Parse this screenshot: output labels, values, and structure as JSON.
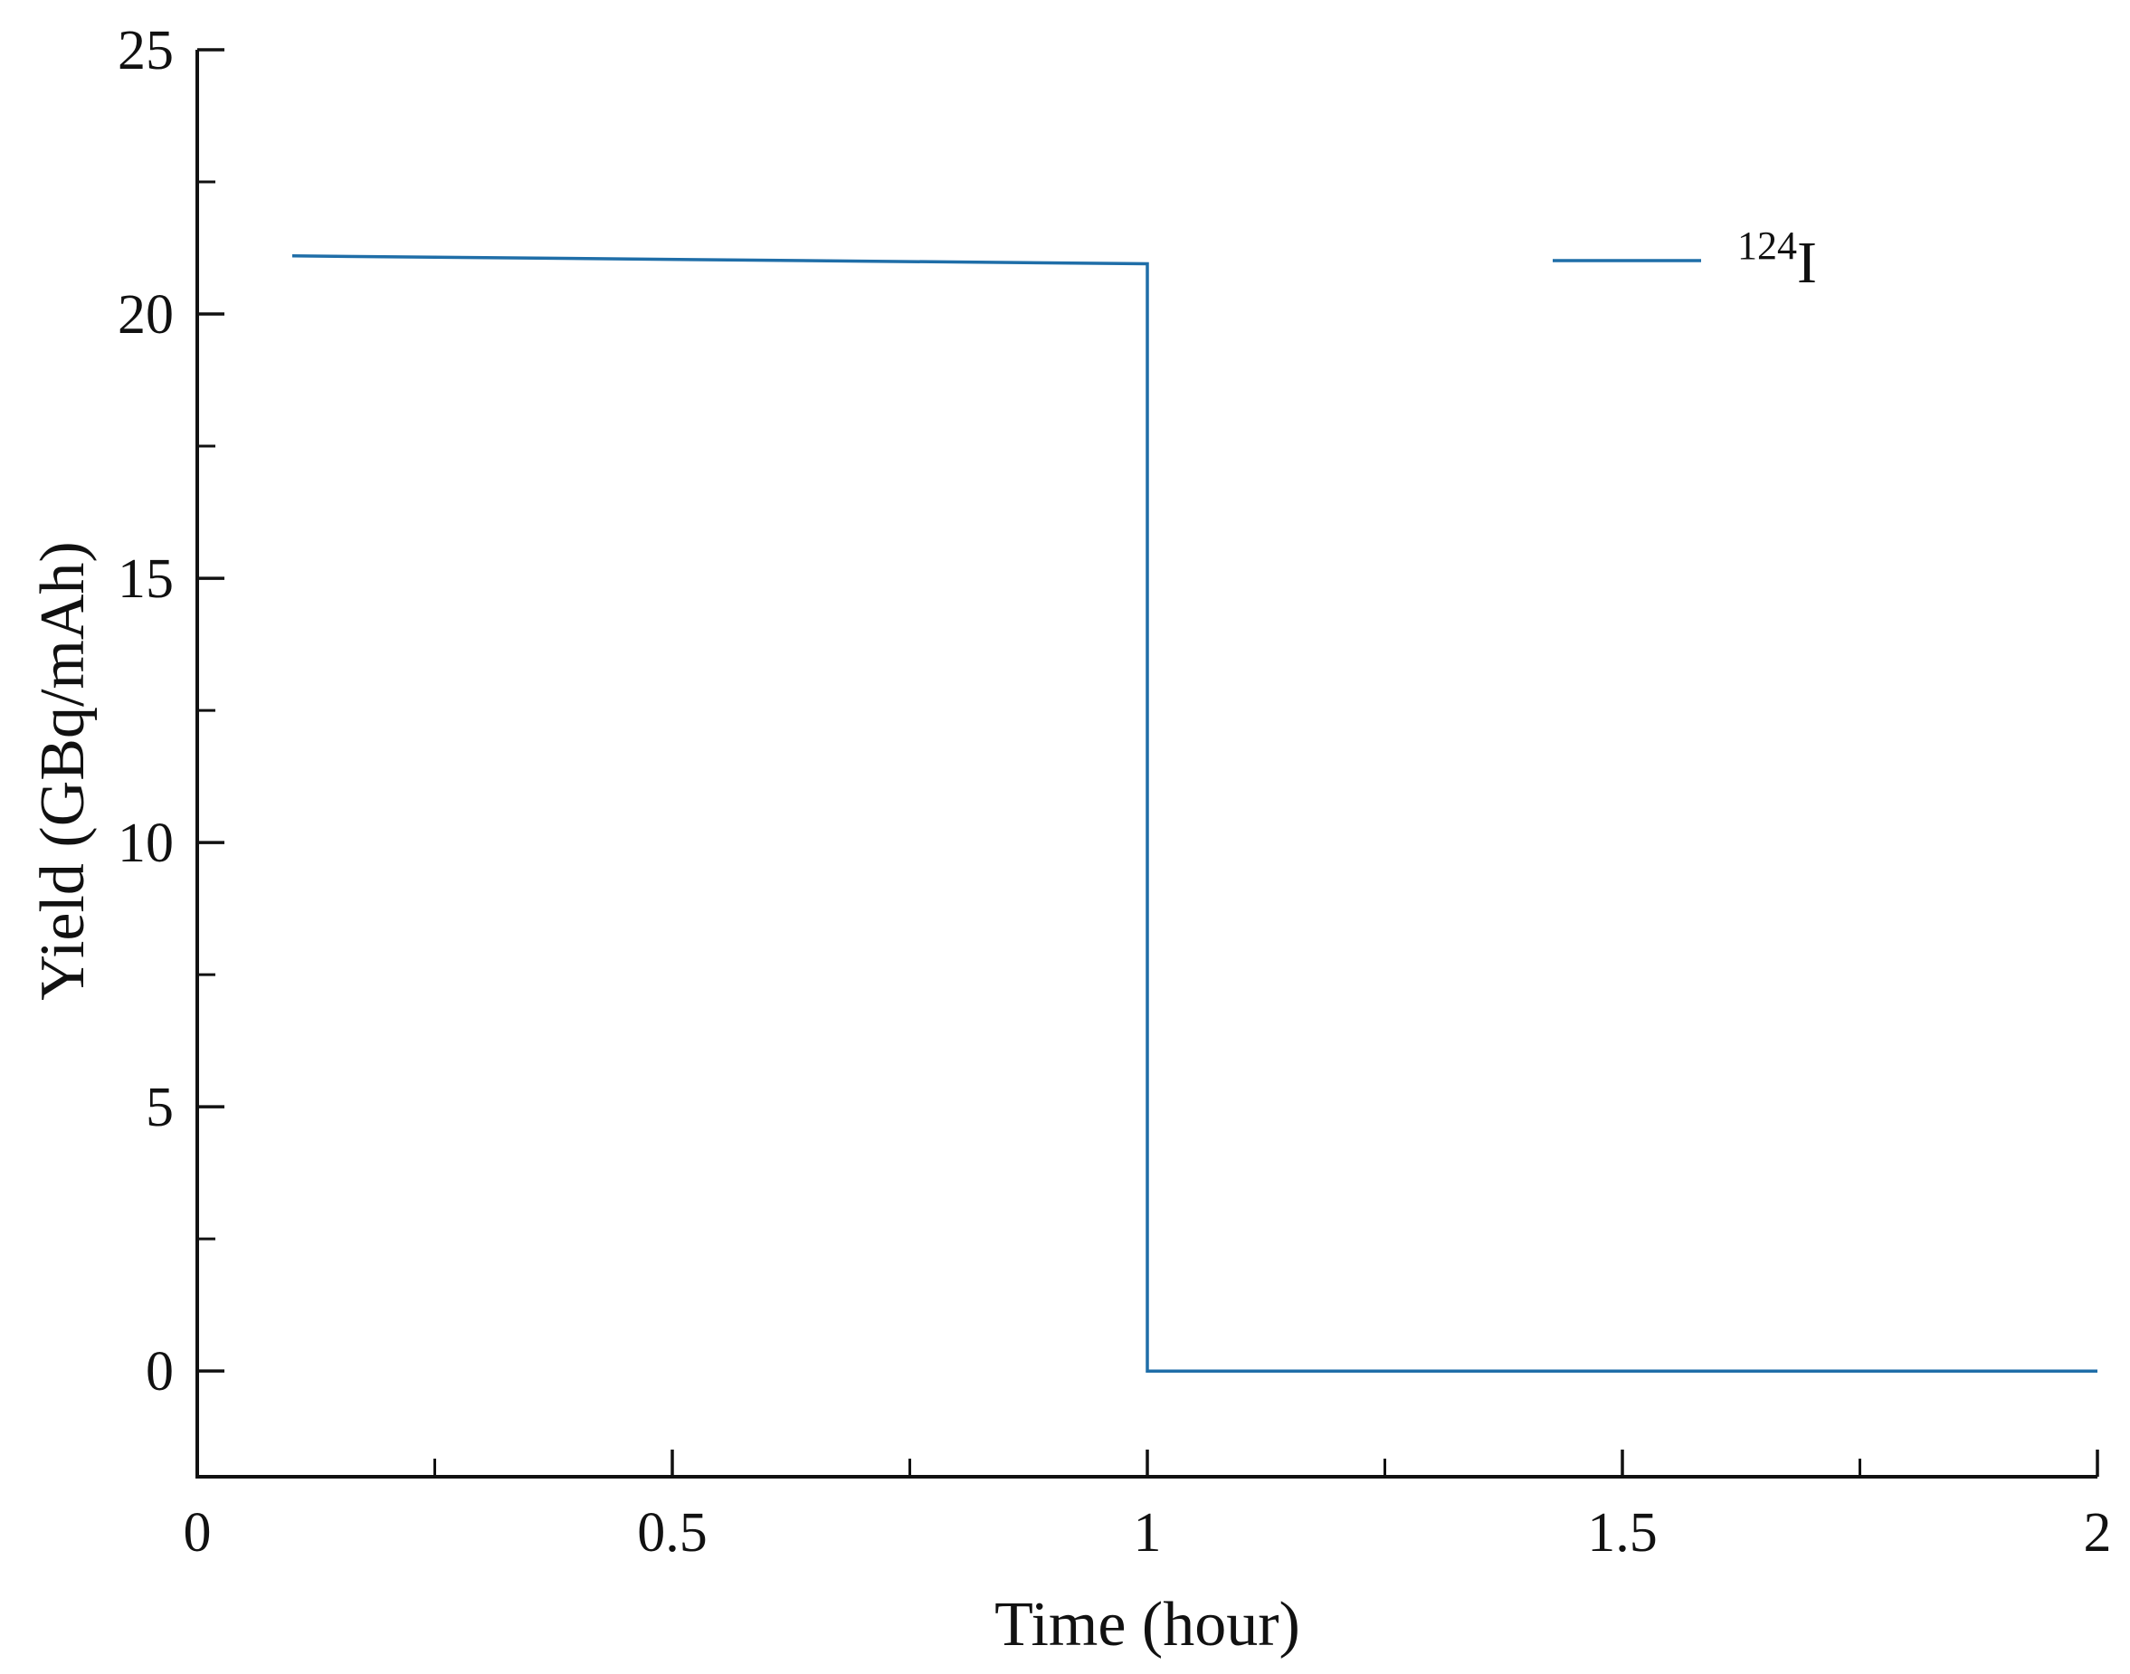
{
  "chart_data": {
    "type": "line",
    "xlabel": "Time (hour)",
    "ylabel": "Yield (GBq/mAh)",
    "xlim": [
      0,
      2
    ],
    "ylim": [
      -2,
      25
    ],
    "x_ticks": [
      0,
      0.5,
      1,
      1.5,
      2
    ],
    "x_tick_labels": [
      "0",
      "0.5",
      "1",
      "1.5",
      "2"
    ],
    "x_minor_ticks": [
      0.25,
      0.75,
      1.25,
      1.75
    ],
    "y_ticks": [
      0,
      5,
      10,
      15,
      20,
      25
    ],
    "y_tick_labels": [
      "0",
      "5",
      "10",
      "15",
      "20",
      "25"
    ],
    "y_minor_ticks": [
      2.5,
      7.5,
      12.5,
      17.5,
      22.5
    ],
    "grid": false,
    "legend_position": "top-right",
    "series": [
      {
        "name_base": "I",
        "name_superscript": "124",
        "color": "#1f6ea8",
        "x": [
          0.1,
          1.0,
          1.0,
          2.0
        ],
        "y": [
          21.1,
          20.95,
          0,
          0
        ]
      }
    ]
  }
}
